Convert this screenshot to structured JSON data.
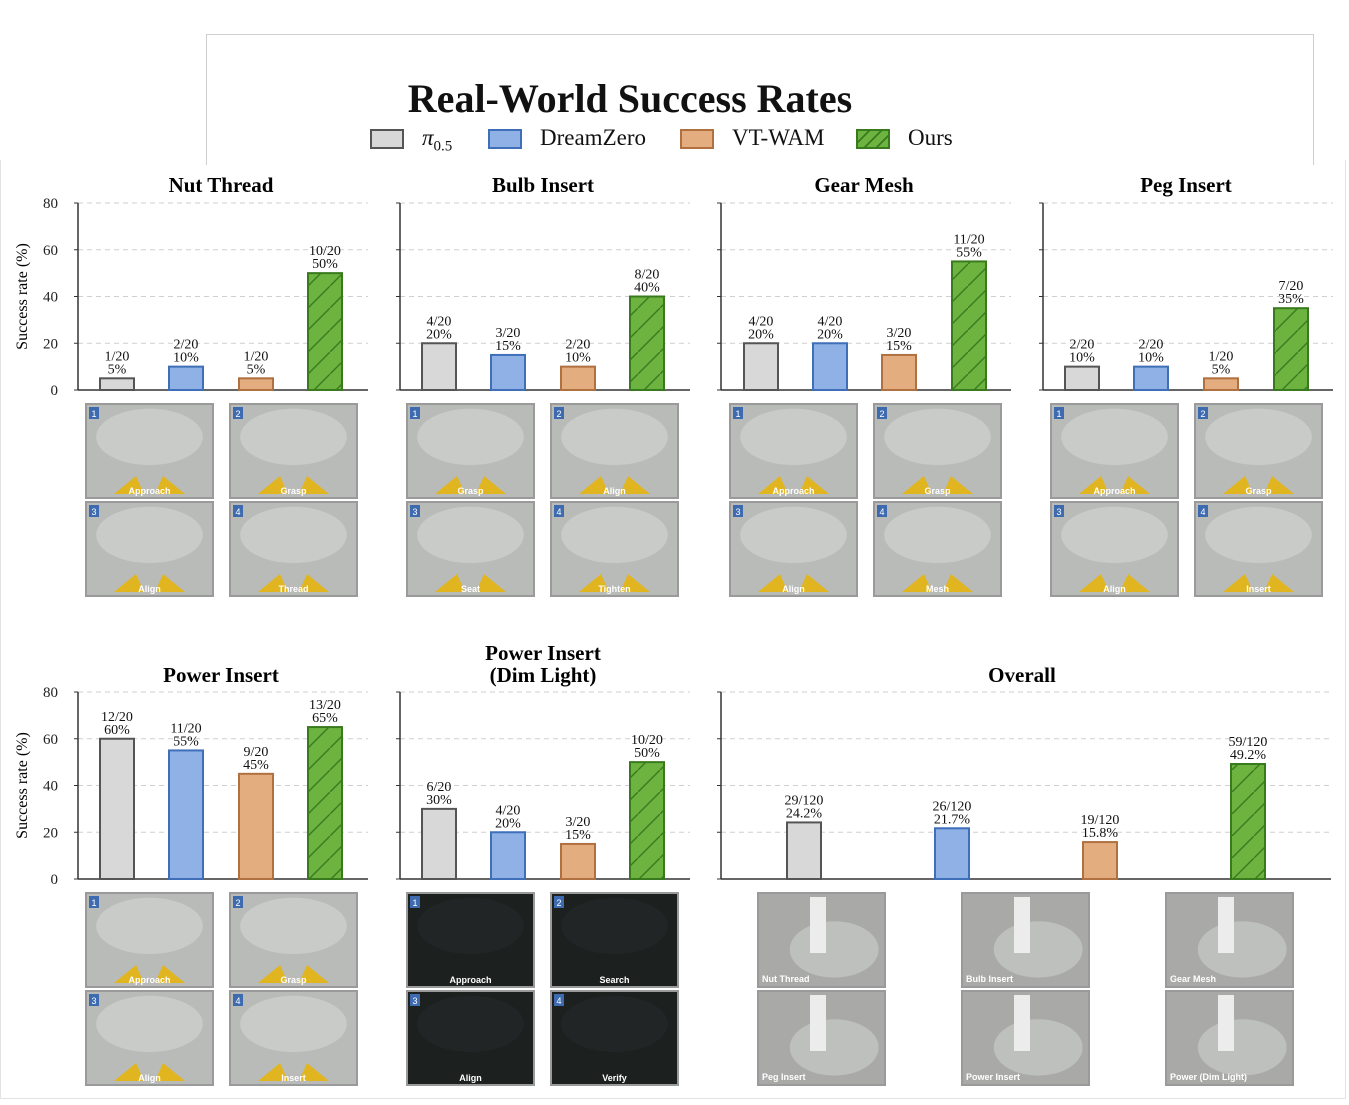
{
  "figure": {
    "title": "Real-World Success Rates"
  },
  "legend": [
    {
      "label": "π",
      "sub": "0.5",
      "color": "#d8d8d8",
      "edge": "#555555",
      "hatch": false
    },
    {
      "label": "DreamZero",
      "sub": "",
      "color": "#8fb1e6",
      "edge": "#3f6fb8",
      "hatch": false
    },
    {
      "label": "VT-WAM",
      "sub": "",
      "color": "#e4ad80",
      "edge": "#b07040",
      "hatch": false
    },
    {
      "label": "Ours",
      "sub": "",
      "color": "#6db33f",
      "edge": "#3a7a1e",
      "hatch": true
    }
  ],
  "ylabel": "Success rate (%)",
  "yticks": [
    "0",
    "20",
    "40",
    "60",
    "80"
  ],
  "chart_data": [
    {
      "type": "bar",
      "title": "Nut Thread",
      "ylim": [
        0,
        80
      ],
      "grid": true,
      "series": [
        "π0.5",
        "DreamZero",
        "VT-WAM",
        "Ours"
      ],
      "values": [
        5,
        10,
        5,
        50
      ],
      "labels": [
        [
          "1/20",
          "5%"
        ],
        [
          "2/20",
          "10%"
        ],
        [
          "1/20",
          "5%"
        ],
        [
          "10/20",
          "50%"
        ]
      ],
      "frames": [
        "Approach",
        "Grasp",
        "Align",
        "Thread"
      ]
    },
    {
      "type": "bar",
      "title": "Bulb Insert",
      "ylim": [
        0,
        80
      ],
      "grid": true,
      "series": [
        "π0.5",
        "DreamZero",
        "VT-WAM",
        "Ours"
      ],
      "values": [
        20,
        15,
        10,
        40
      ],
      "labels": [
        [
          "4/20",
          "20%"
        ],
        [
          "3/20",
          "15%"
        ],
        [
          "2/20",
          "10%"
        ],
        [
          "8/20",
          "40%"
        ]
      ],
      "frames": [
        "Grasp",
        "Align",
        "Seat",
        "Tighten"
      ]
    },
    {
      "type": "bar",
      "title": "Gear Mesh",
      "ylim": [
        0,
        80
      ],
      "grid": true,
      "series": [
        "π0.5",
        "DreamZero",
        "VT-WAM",
        "Ours"
      ],
      "values": [
        20,
        20,
        15,
        55
      ],
      "labels": [
        [
          "4/20",
          "20%"
        ],
        [
          "4/20",
          "20%"
        ],
        [
          "3/20",
          "15%"
        ],
        [
          "11/20",
          "55%"
        ]
      ],
      "frames": [
        "Approach",
        "Grasp",
        "Align",
        "Mesh"
      ]
    },
    {
      "type": "bar",
      "title": "Peg Insert",
      "ylim": [
        0,
        80
      ],
      "grid": true,
      "series": [
        "π0.5",
        "DreamZero",
        "VT-WAM",
        "Ours"
      ],
      "values": [
        10,
        10,
        5,
        35
      ],
      "labels": [
        [
          "2/20",
          "10%"
        ],
        [
          "2/20",
          "10%"
        ],
        [
          "1/20",
          "5%"
        ],
        [
          "7/20",
          "35%"
        ]
      ],
      "frames": [
        "Approach",
        "Grasp",
        "Align",
        "Insert"
      ]
    },
    {
      "type": "bar",
      "title": "Power Insert",
      "ylim": [
        0,
        80
      ],
      "grid": true,
      "series": [
        "π0.5",
        "DreamZero",
        "VT-WAM",
        "Ours"
      ],
      "values": [
        60,
        55,
        45,
        65
      ],
      "labels": [
        [
          "12/20",
          "60%"
        ],
        [
          "11/20",
          "55%"
        ],
        [
          "9/20",
          "45%"
        ],
        [
          "13/20",
          "65%"
        ]
      ],
      "frames": [
        "Approach",
        "Grasp",
        "Align",
        "Insert"
      ]
    },
    {
      "type": "bar",
      "title": "Power Insert\n(Dim Light)",
      "ylim": [
        0,
        80
      ],
      "grid": true,
      "series": [
        "π0.5",
        "DreamZero",
        "VT-WAM",
        "Ours"
      ],
      "values": [
        30,
        20,
        15,
        50
      ],
      "labels": [
        [
          "6/20",
          "30%"
        ],
        [
          "4/20",
          "20%"
        ],
        [
          "3/20",
          "15%"
        ],
        [
          "10/20",
          "50%"
        ]
      ],
      "frames": [
        "Approach",
        "Search",
        "Align",
        "Verify"
      ]
    },
    {
      "type": "bar",
      "title": "Overall",
      "ylim": [
        0,
        80
      ],
      "grid": true,
      "series": [
        "π0.5",
        "DreamZero",
        "VT-WAM",
        "Ours"
      ],
      "values": [
        24.2,
        21.7,
        15.8,
        49.2
      ],
      "labels": [
        [
          "29/120",
          "24.2%"
        ],
        [
          "26/120",
          "21.7%"
        ],
        [
          "19/120",
          "15.8%"
        ],
        [
          "59/120",
          "49.2%"
        ]
      ],
      "frames": [
        "Nut Thread",
        "Bulb Insert",
        "Gear Mesh",
        "Peg Insert",
        "Power Insert",
        "Power (Dim Light)"
      ]
    }
  ]
}
